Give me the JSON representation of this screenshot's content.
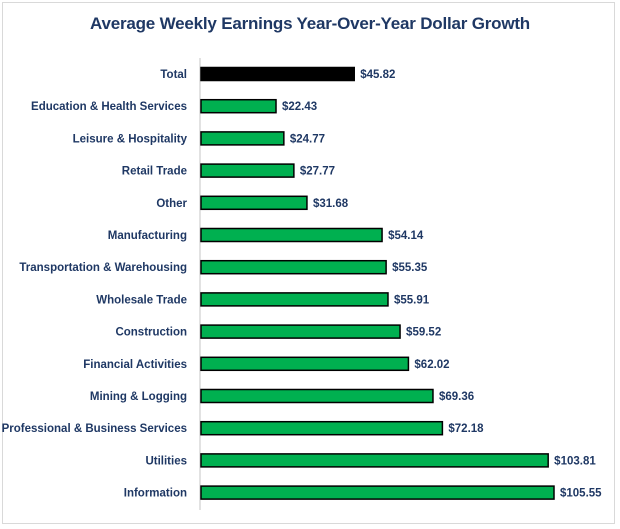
{
  "chart_data": {
    "type": "bar",
    "orientation": "horizontal",
    "title": "Average Weekly Earnings Year-Over-Year Dollar Growth",
    "xlabel": "",
    "ylabel": "",
    "xlim": [
      0,
      110
    ],
    "grid": false,
    "legend": "none",
    "value_format": "$",
    "categories": [
      "Total",
      "Education & Health Services",
      "Leisure & Hospitality",
      "Retail Trade",
      "Other",
      "Manufacturing",
      "Transportation & Warehousing",
      "Wholesale Trade",
      "Construction",
      "Financial Activities",
      "Mining & Logging",
      "Professional & Business Services",
      "Utilities",
      "Information"
    ],
    "values": [
      45.82,
      22.43,
      24.77,
      27.77,
      31.68,
      54.14,
      55.35,
      55.91,
      59.52,
      62.02,
      69.36,
      72.18,
      103.81,
      105.55
    ],
    "data_labels": [
      "$45.82",
      "$22.43",
      "$24.77",
      "$27.77",
      "$31.68",
      "$54.14",
      "$55.35",
      "$55.91",
      "$59.52",
      "$62.02",
      "$69.36",
      "$72.18",
      "$103.81",
      "$105.55"
    ],
    "colors": {
      "total": "#000000",
      "bar": "#00b050",
      "outline": "#000000",
      "text": "#1f3864",
      "axis": "#d9d9d9"
    }
  }
}
